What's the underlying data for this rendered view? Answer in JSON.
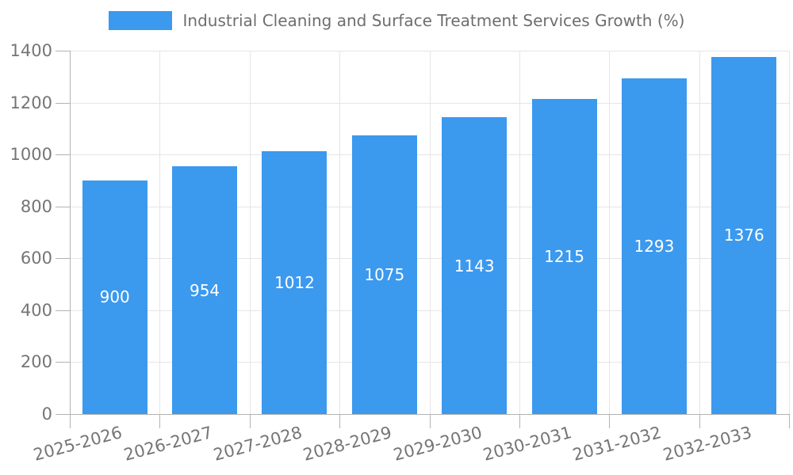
{
  "chart_data": {
    "type": "bar",
    "title": "Industrial Cleaning and Surface Treatment Services Growth (%)",
    "categories": [
      "2025-2026",
      "2026-2027",
      "2027-2028",
      "2028-2029",
      "2029-2030",
      "2030-2031",
      "2031-2032",
      "2032-2033"
    ],
    "values": [
      900,
      954,
      1012,
      1075,
      1143,
      1215,
      1293,
      1376
    ],
    "xlabel": "",
    "ylabel": "",
    "ylim": [
      0,
      1400
    ],
    "yticks": [
      0,
      200,
      400,
      600,
      800,
      1000,
      1200,
      1400
    ],
    "grid": true,
    "legend_position": "top-center",
    "data_labels_inside_bars": true,
    "colors": {
      "bar": "#3b99ee",
      "grid": "#e5e5e5",
      "axis": "#b3b3b3",
      "tick_label": "#757575",
      "title": "#6e6e6e",
      "data_label": "#ffffff",
      "background": "#ffffff"
    }
  }
}
